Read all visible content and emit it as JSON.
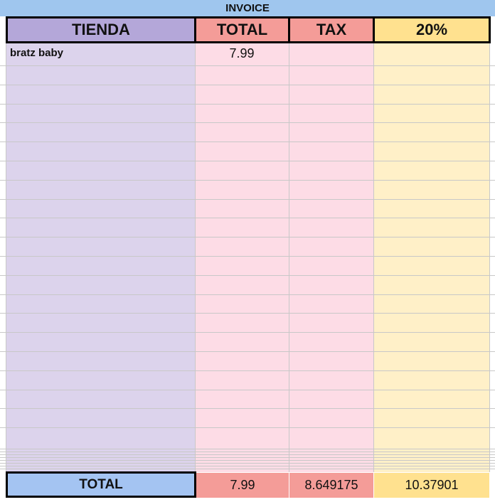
{
  "sheet": {
    "title": "INVOICE",
    "header": [
      "TIENDA",
      "TOTAL",
      "TAX",
      "20%"
    ],
    "rows": [
      [
        "bratz baby",
        "7.99"
      ]
    ],
    "totals": [
      "TOTAL",
      "7.99",
      "8.649175",
      "10.37901"
    ]
  }
}
